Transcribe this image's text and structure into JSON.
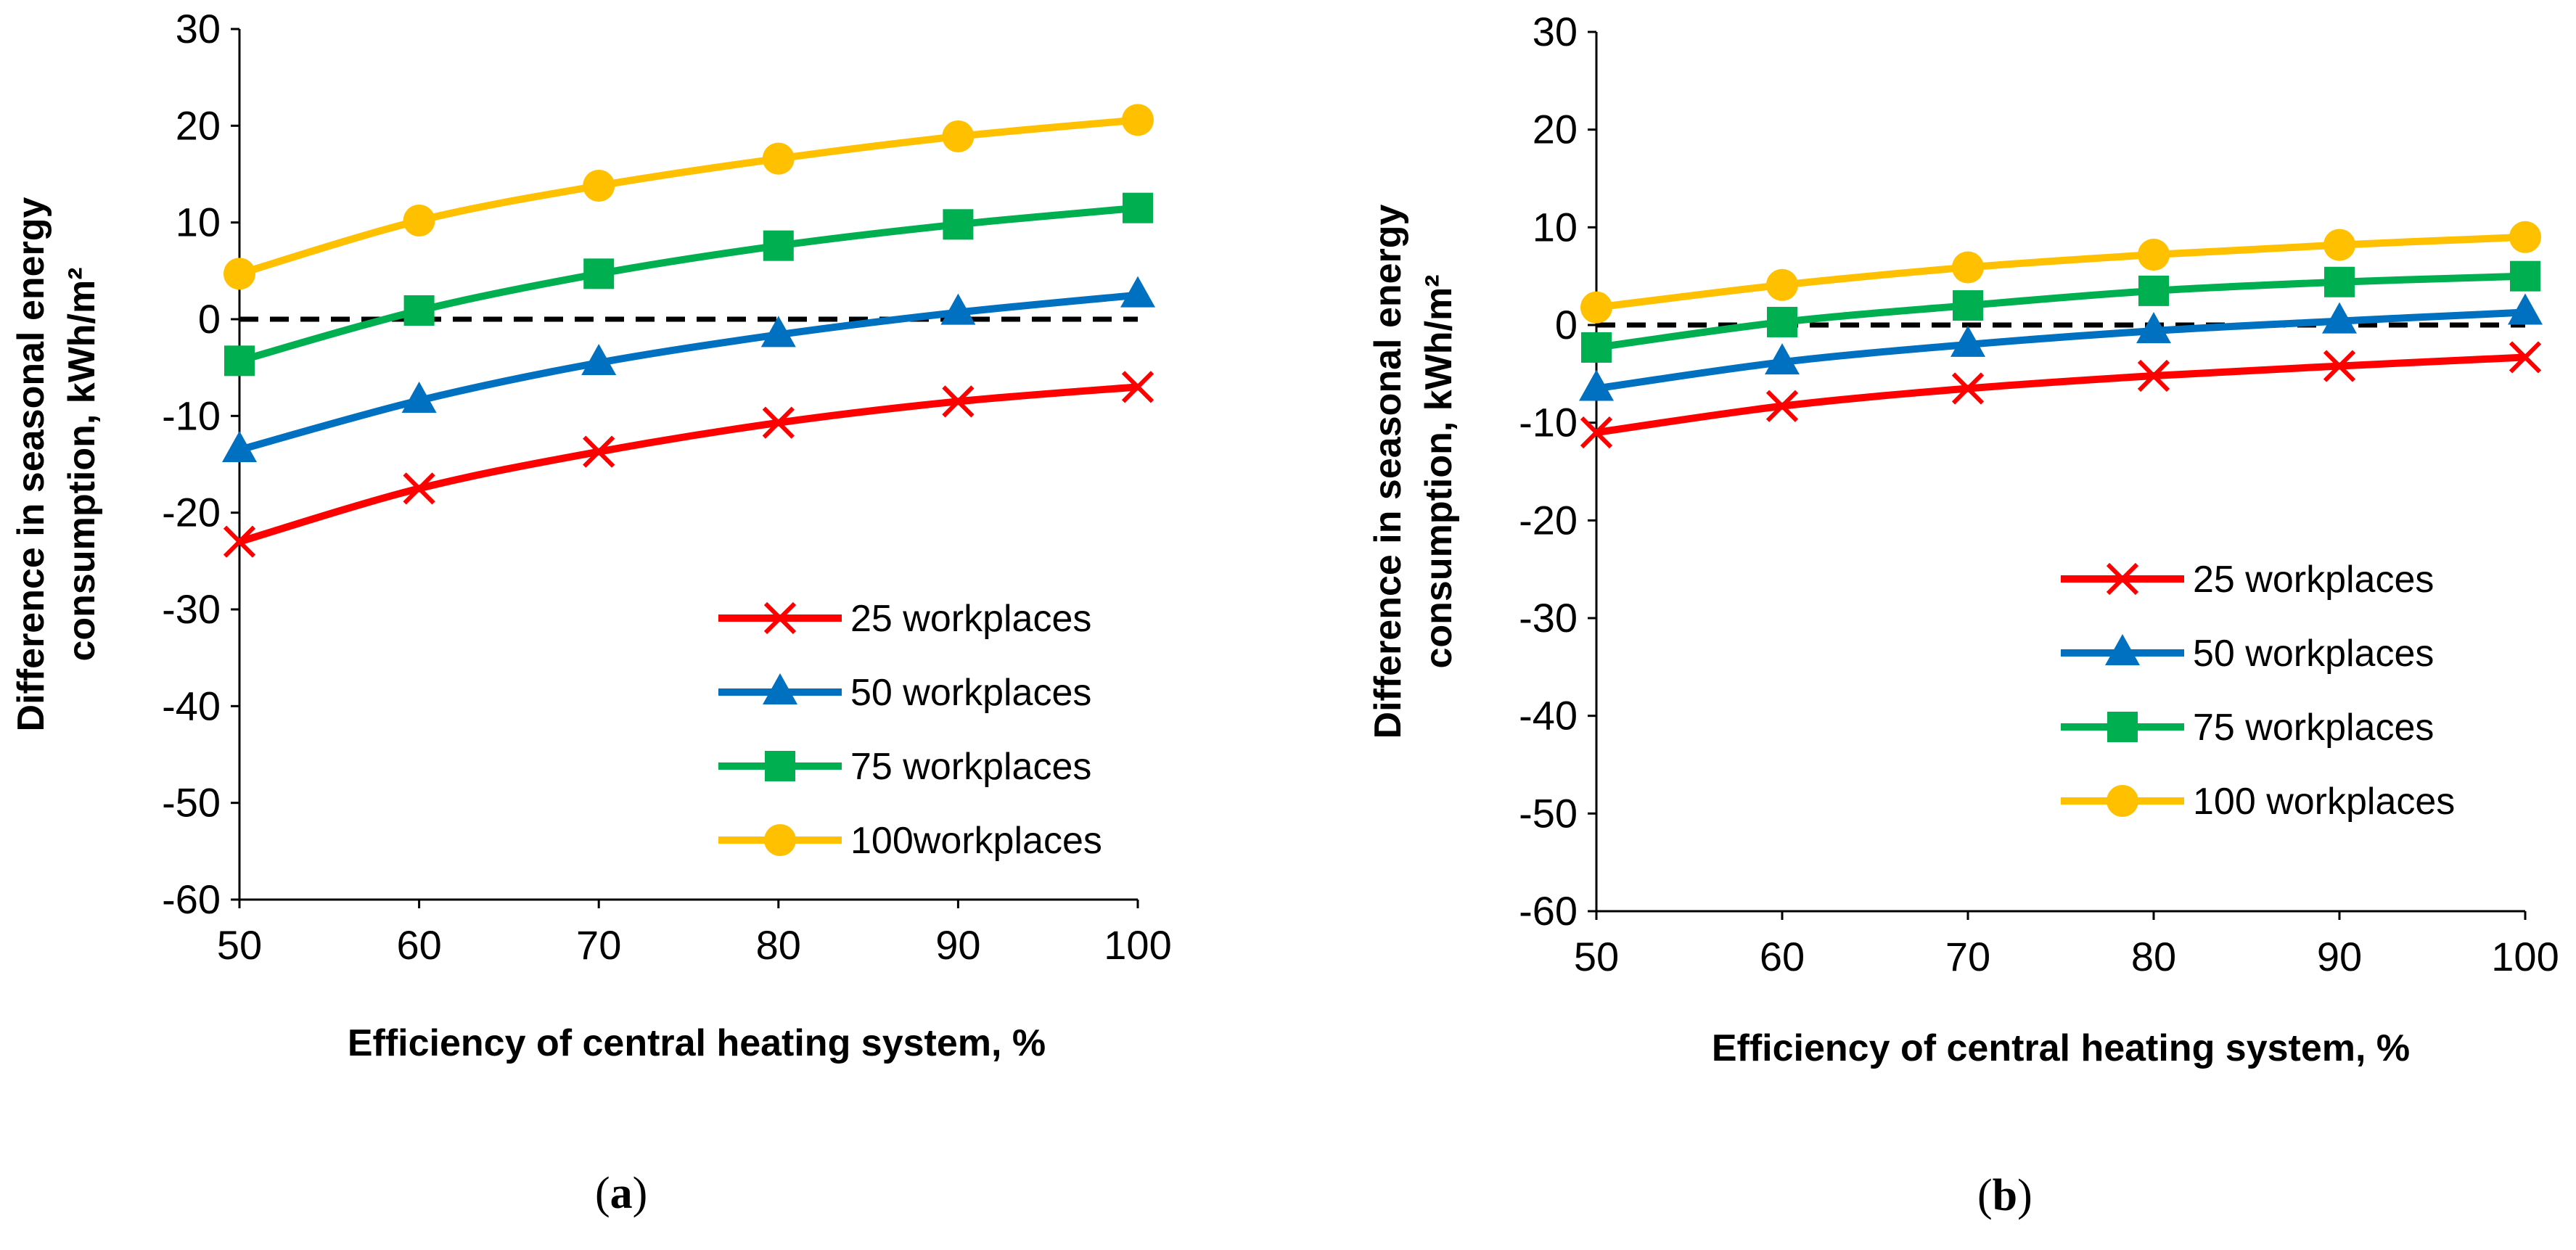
{
  "colors": {
    "series_25": "#FF0000",
    "series_50": "#0070C0",
    "series_75": "#00B050",
    "series_100": "#FFC000",
    "reference_line": "#000000"
  },
  "chart_data": [
    {
      "type": "line",
      "caption_label": "a",
      "xlabel": "Efficiency of central heating system, %",
      "ylabel_line1": "Difference in seasonal energy",
      "ylabel_line2": "consumption, kWh/m²",
      "x": [
        50,
        60,
        70,
        80,
        90,
        100
      ],
      "xlim": [
        50,
        100
      ],
      "ylim": [
        -60,
        30
      ],
      "xticks": [
        50,
        60,
        70,
        80,
        90,
        100
      ],
      "yticks": [
        30,
        20,
        10,
        0,
        -10,
        -20,
        -30,
        -40,
        -50,
        -60
      ],
      "reference_line": {
        "y": 0,
        "style": "dashed"
      },
      "grid": false,
      "legend_position": "bottom-right",
      "series": [
        {
          "name": "25 workplaces",
          "marker": "x-marker",
          "color": "#FF0000",
          "values": [
            -23.0,
            -17.5,
            -13.7,
            -10.7,
            -8.5,
            -7.0
          ]
        },
        {
          "name": "50 workplaces",
          "marker": "triangle-marker",
          "color": "#0070C0",
          "values": [
            -13.5,
            -8.4,
            -4.5,
            -1.6,
            0.7,
            2.5
          ]
        },
        {
          "name": "75 workplaces",
          "marker": "square-marker",
          "color": "#00B050",
          "values": [
            -4.3,
            0.9,
            4.7,
            7.6,
            9.8,
            11.5
          ]
        },
        {
          "name": "100workplaces",
          "marker": "circle-marker",
          "color": "#FFC000",
          "values": [
            4.7,
            10.2,
            13.8,
            16.6,
            18.9,
            20.6
          ]
        }
      ]
    },
    {
      "type": "line",
      "caption_label": "b",
      "xlabel": "Efficiency of central heating system, %",
      "ylabel_line1": "Difference in seasonal energy",
      "ylabel_line2": "consumption, kWh/m²",
      "x": [
        50,
        60,
        70,
        80,
        90,
        100
      ],
      "xlim": [
        50,
        100
      ],
      "ylim": [
        -60,
        30
      ],
      "xticks": [
        50,
        60,
        70,
        80,
        90,
        100
      ],
      "yticks": [
        30,
        20,
        10,
        0,
        -10,
        -20,
        -30,
        -40,
        -50,
        -60
      ],
      "reference_line": {
        "y": 0,
        "style": "dashed"
      },
      "grid": false,
      "legend_position": "middle-right",
      "series": [
        {
          "name": "25 workplaces",
          "marker": "x-marker",
          "color": "#FF0000",
          "values": [
            -11.0,
            -8.3,
            -6.5,
            -5.2,
            -4.2,
            -3.3
          ]
        },
        {
          "name": "50 workplaces",
          "marker": "triangle-marker",
          "color": "#0070C0",
          "values": [
            -6.5,
            -3.8,
            -2.0,
            -0.6,
            0.4,
            1.3
          ]
        },
        {
          "name": "75 workplaces",
          "marker": "square-marker",
          "color": "#00B050",
          "values": [
            -2.3,
            0.3,
            2.0,
            3.5,
            4.4,
            5.0
          ]
        },
        {
          "name": "100 workplaces",
          "marker": "circle-marker",
          "color": "#FFC000",
          "values": [
            1.8,
            4.1,
            5.9,
            7.2,
            8.2,
            9.0
          ]
        }
      ]
    }
  ]
}
